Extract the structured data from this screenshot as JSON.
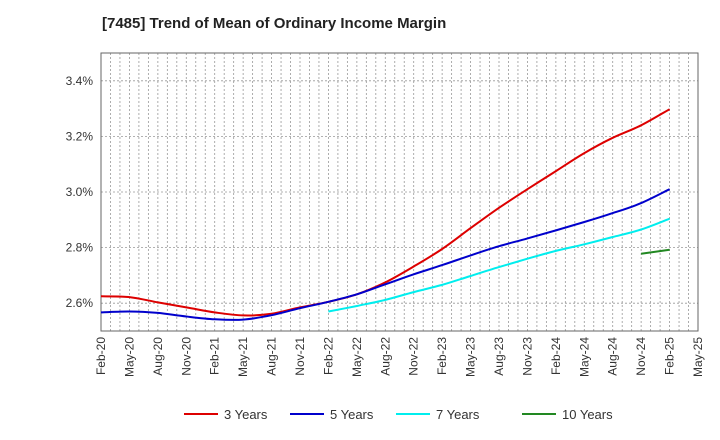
{
  "chart_data": {
    "type": "line",
    "title": "[7485]  Trend of Mean of Ordinary Income Margin",
    "xlabel": "",
    "ylabel": "",
    "x_start": "Feb-20",
    "x_end": "May-25",
    "xticks": [
      "Feb-20",
      "May-20",
      "Aug-20",
      "Nov-20",
      "Feb-21",
      "May-21",
      "Aug-21",
      "Nov-21",
      "Feb-22",
      "May-22",
      "Aug-22",
      "Nov-22",
      "Feb-23",
      "May-23",
      "Aug-23",
      "Nov-23",
      "Feb-24",
      "May-24",
      "Aug-24",
      "Nov-24",
      "Feb-25",
      "May-25"
    ],
    "ylim": [
      2.5,
      3.5
    ],
    "yticks": [
      2.6,
      2.8,
      3.0,
      3.2,
      3.4
    ],
    "ytick_labels": [
      "2.6%",
      "2.8%",
      "3.0%",
      "3.2%",
      "3.4%"
    ],
    "grid": true,
    "legend_position": "bottom",
    "series": [
      {
        "name": "3 Years",
        "color": "#dd0000",
        "x": [
          "Feb-20",
          "May-20",
          "Aug-20",
          "Nov-20",
          "Feb-21",
          "May-21",
          "Aug-21",
          "Nov-21",
          "Feb-22",
          "May-22",
          "Aug-22",
          "Nov-22",
          "Feb-23",
          "May-23",
          "Aug-23",
          "Nov-23",
          "Feb-24",
          "May-24",
          "Aug-24",
          "Nov-24",
          "Feb-25"
        ],
        "values": [
          2.625,
          2.622,
          2.603,
          2.585,
          2.567,
          2.556,
          2.562,
          2.585,
          2.605,
          2.632,
          2.675,
          2.732,
          2.795,
          2.87,
          2.943,
          3.01,
          3.075,
          3.14,
          3.195,
          3.24,
          3.298
        ]
      },
      {
        "name": "5 Years",
        "color": "#0000cc",
        "x": [
          "Feb-20",
          "May-20",
          "Aug-20",
          "Nov-20",
          "Feb-21",
          "May-21",
          "Aug-21",
          "Nov-21",
          "Feb-22",
          "May-22",
          "Aug-22",
          "Nov-22",
          "Feb-23",
          "May-23",
          "Aug-23",
          "Nov-23",
          "Feb-24",
          "May-24",
          "Aug-24",
          "Nov-24",
          "Feb-25"
        ],
        "values": [
          2.567,
          2.57,
          2.565,
          2.552,
          2.542,
          2.541,
          2.557,
          2.582,
          2.605,
          2.632,
          2.668,
          2.704,
          2.737,
          2.772,
          2.805,
          2.833,
          2.862,
          2.892,
          2.924,
          2.96,
          3.01
        ]
      },
      {
        "name": "7 Years",
        "color": "#00eeee",
        "x": [
          "Feb-22",
          "May-22",
          "Aug-22",
          "Nov-22",
          "Feb-23",
          "May-23",
          "Aug-23",
          "Nov-23",
          "Feb-24",
          "May-24",
          "Aug-24",
          "Nov-24",
          "Feb-25"
        ],
        "values": [
          2.57,
          2.59,
          2.612,
          2.64,
          2.666,
          2.698,
          2.73,
          2.76,
          2.788,
          2.812,
          2.838,
          2.865,
          2.904
        ]
      },
      {
        "name": "10 Years",
        "color": "#228822",
        "x": [
          "Nov-24",
          "Feb-25"
        ],
        "values": [
          2.778,
          2.792
        ]
      }
    ]
  }
}
